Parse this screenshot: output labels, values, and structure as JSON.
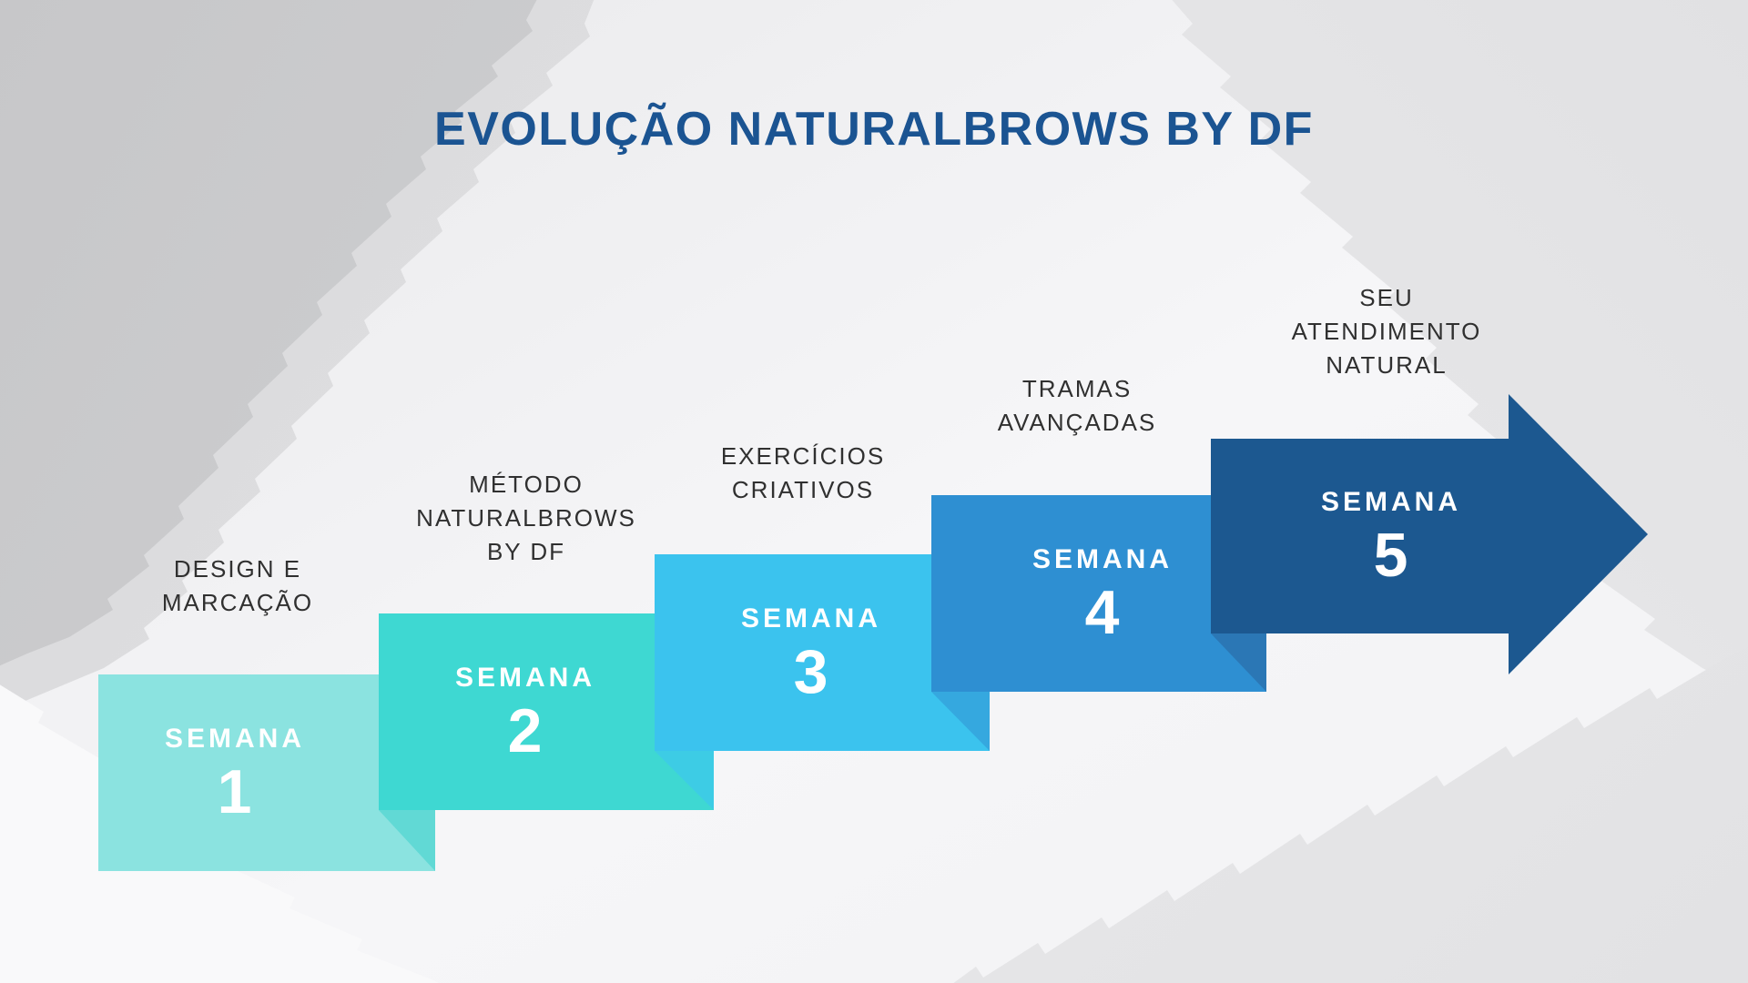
{
  "title": {
    "text": "EVOLUÇÃO NATURALBROWS BY DF",
    "color": "#1B5492"
  },
  "diagram": {
    "week_word": "SEMANA",
    "label_text_color": "#303030",
    "block_text_color": "#FFFFFF",
    "arrow_color": "#1C5890",
    "steps": [
      {
        "number": "1",
        "label": "DESIGN E\nMARCAÇÃO",
        "block_color": "#8BE3E0",
        "fold_color": "#61D9D5"
      },
      {
        "number": "2",
        "label": "MÉTODO\nNATURALBROWS\nBY DF",
        "block_color": "#3ED8D2",
        "fold_color": "#3DCCE5"
      },
      {
        "number": "3",
        "label": "EXERCÍCIOS\nCRIATIVOS",
        "block_color": "#3BC3EE",
        "fold_color": "#35A8DF"
      },
      {
        "number": "4",
        "label": "TRAMAS\nAVANÇADAS",
        "block_color": "#2E8FD2",
        "fold_color": "#2B77B5"
      },
      {
        "number": "5",
        "label": "SEU\nATENDIMENTO\nNATURAL",
        "block_color": "#1C5890"
      }
    ]
  },
  "background": {
    "base_color": "#F1F2F4",
    "wash_dark": "#C8C8CA",
    "wash_light": "#FAFAFB"
  }
}
